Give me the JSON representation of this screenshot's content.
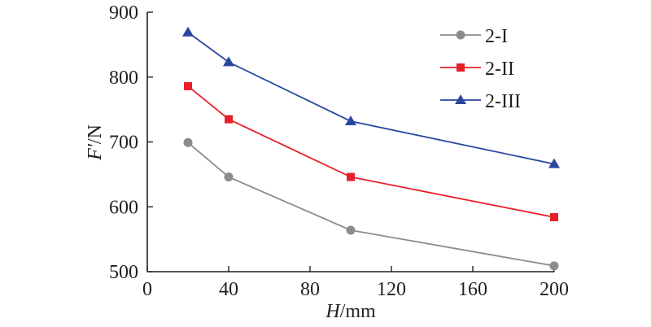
{
  "chart_data": {
    "type": "line",
    "title": "",
    "xlabel_italic": "H",
    "xlabel_unit": "/mm",
    "ylabel_italic": "F'",
    "ylabel_unit": "/N",
    "xlim": [
      0,
      200
    ],
    "ylim": [
      500,
      900
    ],
    "xticks": [
      0,
      40,
      80,
      120,
      160,
      200
    ],
    "yticks": [
      500,
      600,
      700,
      800,
      900
    ],
    "xtick_labels": [
      "0",
      "40",
      "80",
      "120",
      "160",
      "200"
    ],
    "ytick_labels": [
      "500",
      "600",
      "700",
      "800",
      "900"
    ],
    "grid": false,
    "legend_position": "top-right",
    "x": [
      20,
      40,
      100,
      200
    ],
    "series": [
      {
        "name": "2-I",
        "values": [
          699,
          646,
          564,
          509
        ],
        "color": "#8c8c8c",
        "marker": "circle"
      },
      {
        "name": "2-II",
        "values": [
          786,
          735,
          646,
          584
        ],
        "color": "#e8202a",
        "marker": "square"
      },
      {
        "name": "2-III",
        "values": [
          869,
          823,
          732,
          666
        ],
        "color": "#2a47a0",
        "marker": "triangle"
      }
    ]
  }
}
